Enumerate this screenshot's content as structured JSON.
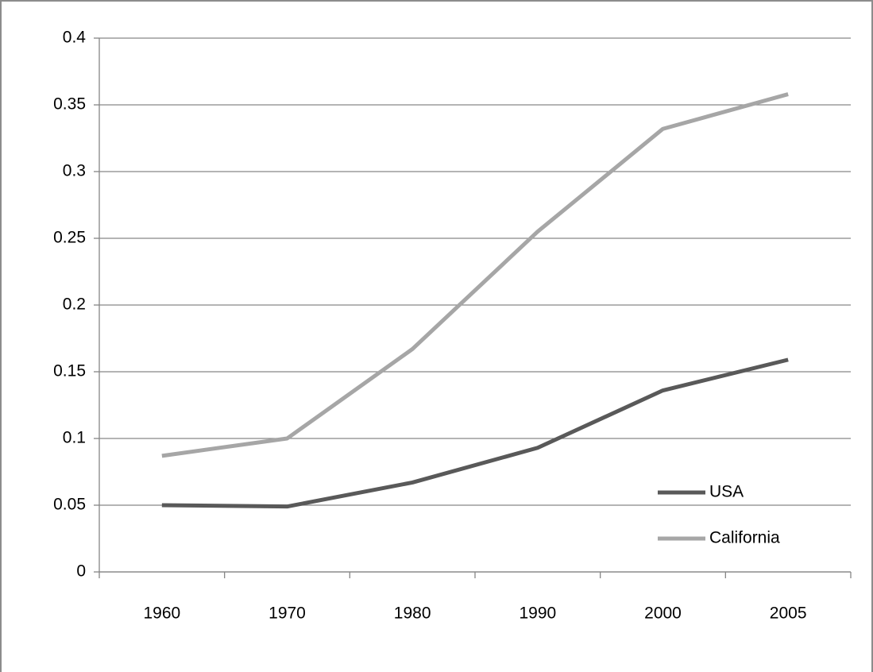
{
  "chart_data": {
    "type": "line",
    "categories": [
      "1960",
      "1970",
      "1980",
      "1990",
      "2000",
      "2005"
    ],
    "series": [
      {
        "name": "USA",
        "color": "#595959",
        "values": [
          0.05,
          0.049,
          0.067,
          0.093,
          0.136,
          0.159
        ]
      },
      {
        "name": "California",
        "color": "#a6a6a6",
        "values": [
          0.087,
          0.1,
          0.167,
          0.255,
          0.332,
          0.358
        ]
      }
    ],
    "ylim": [
      0,
      0.4
    ],
    "yticks": [
      0,
      0.05,
      0.1,
      0.15,
      0.2,
      0.25,
      0.3,
      0.35,
      0.4
    ],
    "grid": true
  }
}
